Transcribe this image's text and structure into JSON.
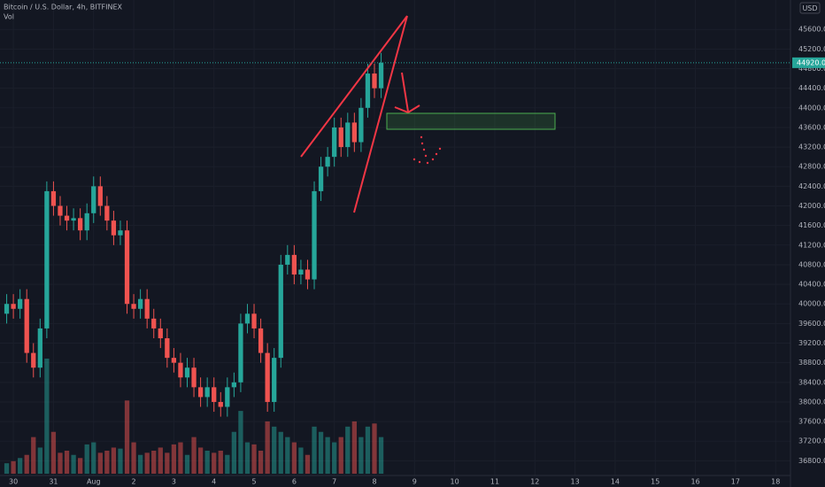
{
  "header": {
    "symbol": "Bitcoin / U.S. Dollar, 4h, BITFINEX",
    "volume_label": "Vol",
    "currency": "USD"
  },
  "chart_data": {
    "type": "candlestick",
    "x": [
      -4,
      0,
      4,
      8,
      12,
      16,
      20,
      24,
      28,
      32,
      36,
      40,
      44,
      48,
      52,
      56,
      60,
      64,
      68,
      72,
      76,
      80,
      84,
      88,
      92,
      96,
      100,
      104,
      108,
      112,
      116,
      120,
      124,
      128,
      132,
      136,
      140,
      144,
      148,
      152,
      156,
      160,
      164,
      168,
      172,
      176,
      180,
      184,
      188,
      192,
      196,
      200,
      204,
      208,
      212,
      216,
      220
    ],
    "open": [
      39800,
      40000,
      39900,
      40100,
      39000,
      38700,
      39500,
      42300,
      42000,
      41800,
      41700,
      41750,
      41500,
      41850,
      42400,
      42000,
      41700,
      41400,
      41500,
      40000,
      39900,
      40100,
      39700,
      39500,
      39300,
      38900,
      38800,
      38500,
      38700,
      38300,
      38100,
      38300,
      38000,
      37900,
      38300,
      38400,
      39600,
      39800,
      39500,
      39000,
      38000,
      38900,
      40800,
      41000,
      40600,
      40700,
      40500,
      42300,
      42800,
      43000,
      43600,
      43200,
      43700,
      43300,
      44000,
      44700,
      44400
    ],
    "high": [
      40200,
      40200,
      40300,
      40300,
      39200,
      39700,
      42500,
      42500,
      42200,
      42000,
      41950,
      41950,
      42050,
      42600,
      42600,
      42200,
      41900,
      41700,
      41700,
      40200,
      40300,
      40300,
      39900,
      39700,
      39500,
      39100,
      39000,
      38900,
      38900,
      38500,
      38500,
      38500,
      38200,
      38500,
      38600,
      39800,
      40000,
      40000,
      39700,
      39200,
      39100,
      41000,
      41200,
      41200,
      40900,
      40900,
      42500,
      43000,
      43200,
      43800,
      43800,
      43900,
      43900,
      44200,
      44900,
      44900,
      45120
    ],
    "low": [
      39600,
      39700,
      39700,
      38800,
      38500,
      38500,
      39300,
      41800,
      41600,
      41500,
      41500,
      41300,
      41300,
      41650,
      41800,
      41500,
      41200,
      41200,
      39800,
      39700,
      39700,
      39500,
      39300,
      39100,
      38700,
      38600,
      38300,
      38300,
      38100,
      37900,
      37900,
      37800,
      37700,
      37700,
      38100,
      38200,
      39400,
      39300,
      38800,
      37800,
      37800,
      38700,
      40600,
      40400,
      40400,
      40300,
      40300,
      42100,
      42600,
      42800,
      43000,
      43000,
      43100,
      43100,
      43800,
      44200,
      44200
    ],
    "close": [
      40000,
      39900,
      40100,
      39000,
      38700,
      39500,
      42300,
      42000,
      41800,
      41700,
      41750,
      41500,
      41850,
      42400,
      42000,
      41700,
      41400,
      41500,
      40000,
      39900,
      40100,
      39700,
      39500,
      39300,
      38900,
      38800,
      38500,
      38700,
      38300,
      38100,
      38300,
      38000,
      37900,
      38300,
      38400,
      39600,
      39800,
      39500,
      39000,
      38000,
      38900,
      40800,
      41000,
      40600,
      40700,
      40500,
      42300,
      42800,
      43000,
      43600,
      43200,
      43700,
      43300,
      44000,
      44700,
      44400,
      44920
    ],
    "volume": [
      10,
      12,
      15,
      18,
      35,
      25,
      110,
      40,
      20,
      22,
      18,
      15,
      28,
      30,
      20,
      22,
      25,
      24,
      70,
      30,
      18,
      20,
      22,
      25,
      20,
      28,
      30,
      18,
      35,
      25,
      22,
      20,
      22,
      18,
      40,
      60,
      30,
      28,
      22,
      50,
      45,
      40,
      35,
      30,
      25,
      18,
      45,
      40,
      35,
      30,
      35,
      45,
      50,
      35,
      45,
      48,
      35
    ],
    "up_color": "#26a69a",
    "down_color": "#ef5350",
    "last_price_label": "44920.0",
    "xlim": [
      -8,
      458
    ],
    "xticks": [
      {
        "value": 0,
        "label": "30"
      },
      {
        "value": 24,
        "label": "31"
      },
      {
        "value": 48,
        "label": "Aug"
      },
      {
        "value": 72,
        "label": "2"
      },
      {
        "value": 96,
        "label": "3"
      },
      {
        "value": 120,
        "label": "4"
      },
      {
        "value": 144,
        "label": "5"
      },
      {
        "value": 168,
        "label": "6"
      },
      {
        "value": 192,
        "label": "7"
      },
      {
        "value": 216,
        "label": "8"
      },
      {
        "value": 240,
        "label": "9"
      },
      {
        "value": 264,
        "label": "10"
      },
      {
        "value": 288,
        "label": "11"
      },
      {
        "value": 312,
        "label": "12"
      },
      {
        "value": 336,
        "label": "13"
      },
      {
        "value": 360,
        "label": "14"
      },
      {
        "value": 384,
        "label": "15"
      },
      {
        "value": 408,
        "label": "16"
      },
      {
        "value": 432,
        "label": "17"
      },
      {
        "value": 456,
        "label": "18"
      }
    ],
    "ylim": [
      36500,
      46200
    ],
    "yticks": [
      {
        "value": 36800,
        "label": "36800.0"
      },
      {
        "value": 37200,
        "label": "37200.0"
      },
      {
        "value": 37600,
        "label": "37600.0"
      },
      {
        "value": 38000,
        "label": "38000.0"
      },
      {
        "value": 38400,
        "label": "38400.0"
      },
      {
        "value": 38800,
        "label": "38800.0"
      },
      {
        "value": 39200,
        "label": "39200.0"
      },
      {
        "value": 39600,
        "label": "39600.0"
      },
      {
        "value": 40000,
        "label": "40000.0"
      },
      {
        "value": 40400,
        "label": "40400.0"
      },
      {
        "value": 40800,
        "label": "40800.0"
      },
      {
        "value": 41200,
        "label": "41200.0"
      },
      {
        "value": 41600,
        "label": "41600.0"
      },
      {
        "value": 42000,
        "label": "42000.0"
      },
      {
        "value": 42400,
        "label": "42400.0"
      },
      {
        "value": 42800,
        "label": "42800.0"
      },
      {
        "value": 43200,
        "label": "43200.0"
      },
      {
        "value": 43600,
        "label": "43600.0"
      },
      {
        "value": 44000,
        "label": "44000.0"
      },
      {
        "value": 44400,
        "label": "44400.0"
      },
      {
        "value": 44800,
        "label": "44800.0"
      },
      {
        "value": 45200,
        "label": "45200.0"
      },
      {
        "value": 45600,
        "label": "45600.0"
      }
    ],
    "grid": true
  }
}
